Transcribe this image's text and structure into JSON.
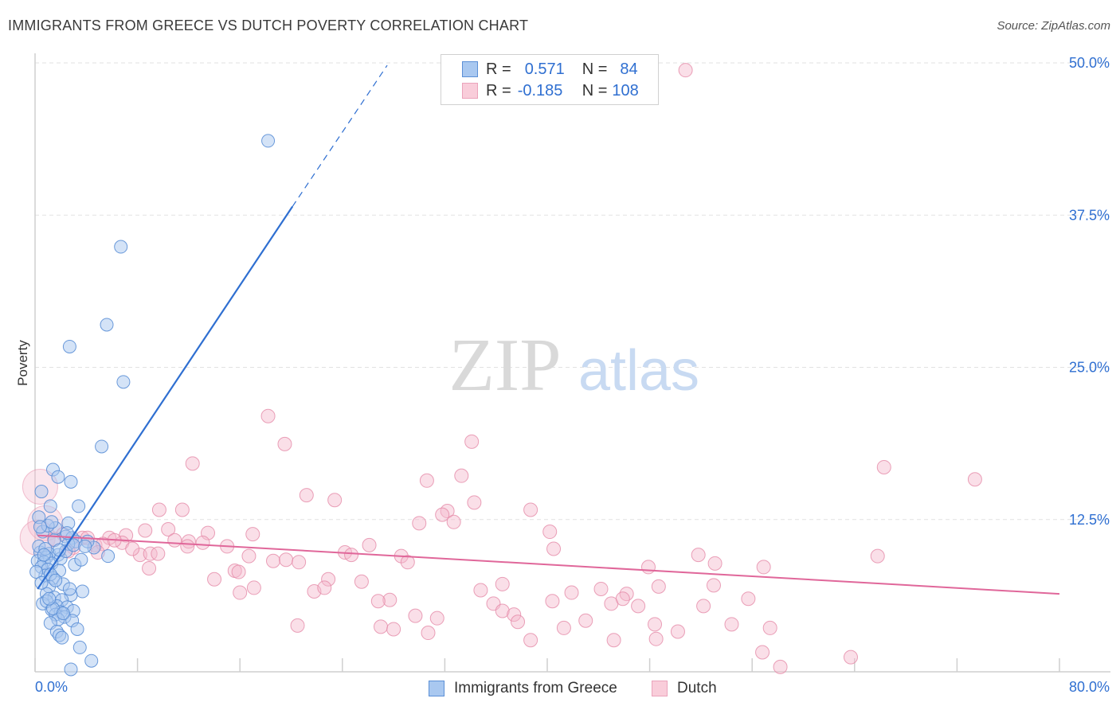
{
  "title": "IMMIGRANTS FROM GREECE VS DUTCH POVERTY CORRELATION CHART",
  "source": "Source: ZipAtlas.com",
  "watermark": {
    "zip": "ZIP",
    "atlas": "atlas"
  },
  "legend": {
    "rows": [
      {
        "r_label": "R =",
        "r_value": "0.571",
        "n_label": "N =",
        "n_value": "84"
      },
      {
        "r_label": "R =",
        "r_value": "-0.185",
        "n_label": "N =",
        "n_value": "108"
      }
    ]
  },
  "bottom_legend": {
    "series1": "Immigrants from Greece",
    "series2": "Dutch"
  },
  "colors": {
    "blue_fill": "#a9c8f0",
    "blue_stroke": "#5b8fd6",
    "blue_line": "#2f6fd1",
    "pink_fill": "#f4b8cb",
    "pink_stroke": "#e58aa8",
    "pink_line": "#e0679a",
    "axis_label": "#2f6fd1",
    "grid": "#e2e2e2"
  },
  "chart_data": {
    "type": "scatter",
    "title": "IMMIGRANTS FROM GREECE VS DUTCH POVERTY CORRELATION CHART",
    "xlabel": "",
    "ylabel": "Poverty",
    "xlim": [
      0,
      80
    ],
    "ylim": [
      0,
      50
    ],
    "x_tick_labels": [
      "0.0%",
      "80.0%"
    ],
    "y_tick_labels": [
      "12.5%",
      "25.0%",
      "37.5%",
      "50.0%"
    ],
    "y_ticks": [
      12.5,
      25.0,
      37.5,
      50.0
    ],
    "x_minor_ticks": [
      0,
      8,
      16,
      24,
      32,
      40,
      48,
      56,
      64,
      72,
      80
    ],
    "series": [
      {
        "name": "Immigrants from Greece",
        "R": 0.571,
        "N": 84,
        "trend": {
          "x1": 0.2,
          "y1": 6.8,
          "x2": 20.1,
          "y2": 38.2,
          "dash_x2": 27.5,
          "dash_y2": 49.8
        },
        "points": [
          [
            18.2,
            43.6
          ],
          [
            6.7,
            34.9
          ],
          [
            5.6,
            28.5
          ],
          [
            2.7,
            26.7
          ],
          [
            6.9,
            23.8
          ],
          [
            5.2,
            18.5
          ],
          [
            1.4,
            16.6
          ],
          [
            1.8,
            16.0
          ],
          [
            2.8,
            15.6
          ],
          [
            0.5,
            14.8
          ],
          [
            3.4,
            13.6
          ],
          [
            1.2,
            13.6
          ],
          [
            0.3,
            12.7
          ],
          [
            1.6,
            11.8
          ],
          [
            0.6,
            11.5
          ],
          [
            2.4,
            11.1
          ],
          [
            2.9,
            11.0
          ],
          [
            3.2,
            10.7
          ],
          [
            2.6,
            10.5
          ],
          [
            4.6,
            10.2
          ],
          [
            0.4,
            9.8
          ],
          [
            1.1,
            9.7
          ],
          [
            1.8,
            9.6
          ],
          [
            0.9,
            9.4
          ],
          [
            2.0,
            9.3
          ],
          [
            5.7,
            9.5
          ],
          [
            0.2,
            9.1
          ],
          [
            0.7,
            9.0
          ],
          [
            1.3,
            8.9
          ],
          [
            3.1,
            8.8
          ],
          [
            0.5,
            8.6
          ],
          [
            1.0,
            8.4
          ],
          [
            1.9,
            8.3
          ],
          [
            0.8,
            7.9
          ],
          [
            1.4,
            7.7
          ],
          [
            2.2,
            7.2
          ],
          [
            1.1,
            7.0
          ],
          [
            3.7,
            6.6
          ],
          [
            0.9,
            6.4
          ],
          [
            2.8,
            6.3
          ],
          [
            1.5,
            6.1
          ],
          [
            2.1,
            5.9
          ],
          [
            0.6,
            5.6
          ],
          [
            1.7,
            5.4
          ],
          [
            2.5,
            5.3
          ],
          [
            1.3,
            5.1
          ],
          [
            3.0,
            5.0
          ],
          [
            2.0,
            4.9
          ],
          [
            1.6,
            4.7
          ],
          [
            2.3,
            4.5
          ],
          [
            1.8,
            4.3
          ],
          [
            2.9,
            4.2
          ],
          [
            1.2,
            4.0
          ],
          [
            3.3,
            3.5
          ],
          [
            1.7,
            3.3
          ],
          [
            1.9,
            3.0
          ],
          [
            2.1,
            2.8
          ],
          [
            3.5,
            2.0
          ],
          [
            4.4,
            0.9
          ],
          [
            2.8,
            0.2
          ],
          [
            0.3,
            10.3
          ],
          [
            0.1,
            8.2
          ],
          [
            1.0,
            12.0
          ],
          [
            1.5,
            10.8
          ],
          [
            2.6,
            12.2
          ],
          [
            0.4,
            11.9
          ],
          [
            1.3,
            12.3
          ],
          [
            0.8,
            10.1
          ],
          [
            2.4,
            9.9
          ],
          [
            3.0,
            10.4
          ],
          [
            1.2,
            8.0
          ],
          [
            1.6,
            7.5
          ],
          [
            2.7,
            6.8
          ],
          [
            0.9,
            5.8
          ],
          [
            1.4,
            5.2
          ],
          [
            2.2,
            4.8
          ],
          [
            0.7,
            9.6
          ],
          [
            1.9,
            10.0
          ],
          [
            3.6,
            9.2
          ],
          [
            0.5,
            7.3
          ],
          [
            1.1,
            6.0
          ],
          [
            2.5,
            11.4
          ],
          [
            4.1,
            10.7
          ],
          [
            3.9,
            10.3
          ]
        ]
      },
      {
        "name": "Dutch",
        "R": -0.185,
        "N": 108,
        "trend": {
          "x1": 0.2,
          "y1": 11.2,
          "x2": 80.0,
          "y2": 6.4
        },
        "points": [
          [
            50.8,
            49.4
          ],
          [
            18.2,
            21.0
          ],
          [
            19.5,
            18.7
          ],
          [
            34.1,
            18.9
          ],
          [
            12.3,
            17.1
          ],
          [
            66.3,
            16.8
          ],
          [
            73.4,
            15.8
          ],
          [
            33.3,
            16.1
          ],
          [
            30.6,
            15.7
          ],
          [
            21.2,
            14.5
          ],
          [
            23.4,
            14.1
          ],
          [
            34.3,
            13.9
          ],
          [
            9.7,
            13.3
          ],
          [
            11.5,
            13.3
          ],
          [
            38.7,
            13.3
          ],
          [
            32.2,
            13.2
          ],
          [
            31.8,
            12.9
          ],
          [
            30.0,
            12.2
          ],
          [
            32.7,
            12.3
          ],
          [
            8.6,
            11.6
          ],
          [
            10.4,
            11.7
          ],
          [
            13.5,
            11.4
          ],
          [
            17.0,
            11.3
          ],
          [
            7.1,
            11.2
          ],
          [
            3.7,
            11.0
          ],
          [
            5.8,
            11.0
          ],
          [
            10.9,
            10.8
          ],
          [
            12.0,
            10.7
          ],
          [
            15.0,
            10.3
          ],
          [
            6.8,
            10.6
          ],
          [
            4.7,
            10.4
          ],
          [
            26.1,
            10.4
          ],
          [
            40.2,
            11.5
          ],
          [
            8.2,
            9.6
          ],
          [
            9.0,
            9.7
          ],
          [
            24.2,
            9.8
          ],
          [
            24.7,
            9.6
          ],
          [
            28.6,
            9.5
          ],
          [
            40.5,
            10.1
          ],
          [
            51.8,
            9.6
          ],
          [
            65.8,
            9.5
          ],
          [
            18.6,
            9.1
          ],
          [
            19.6,
            9.2
          ],
          [
            20.6,
            9.0
          ],
          [
            29.1,
            9.0
          ],
          [
            53.1,
            8.9
          ],
          [
            47.9,
            8.6
          ],
          [
            56.9,
            8.6
          ],
          [
            8.9,
            8.5
          ],
          [
            15.6,
            8.3
          ],
          [
            15.9,
            8.2
          ],
          [
            14.0,
            7.6
          ],
          [
            22.9,
            7.6
          ],
          [
            25.5,
            7.4
          ],
          [
            36.5,
            7.2
          ],
          [
            48.7,
            7.0
          ],
          [
            53.0,
            7.1
          ],
          [
            17.1,
            6.9
          ],
          [
            16.0,
            6.5
          ],
          [
            21.8,
            6.6
          ],
          [
            22.6,
            6.9
          ],
          [
            34.8,
            6.7
          ],
          [
            41.9,
            6.5
          ],
          [
            44.2,
            6.8
          ],
          [
            46.2,
            6.4
          ],
          [
            27.7,
            5.9
          ],
          [
            26.8,
            5.8
          ],
          [
            35.8,
            5.6
          ],
          [
            40.4,
            5.8
          ],
          [
            45.0,
            5.6
          ],
          [
            45.9,
            6.0
          ],
          [
            47.1,
            5.4
          ],
          [
            55.7,
            6.0
          ],
          [
            52.2,
            5.4
          ],
          [
            36.5,
            5.0
          ],
          [
            37.4,
            4.7
          ],
          [
            29.7,
            4.6
          ],
          [
            31.4,
            4.4
          ],
          [
            37.7,
            4.1
          ],
          [
            43.0,
            4.2
          ],
          [
            48.4,
            3.9
          ],
          [
            54.4,
            3.9
          ],
          [
            20.5,
            3.8
          ],
          [
            27.0,
            3.7
          ],
          [
            28.0,
            3.5
          ],
          [
            30.7,
            3.2
          ],
          [
            41.3,
            3.6
          ],
          [
            50.2,
            3.3
          ],
          [
            57.4,
            3.6
          ],
          [
            38.7,
            2.6
          ],
          [
            45.2,
            2.6
          ],
          [
            48.5,
            2.7
          ],
          [
            56.8,
            1.6
          ],
          [
            58.2,
            0.4
          ],
          [
            63.7,
            1.2
          ],
          [
            2.2,
            11.3
          ],
          [
            4.1,
            11.0
          ],
          [
            1.5,
            10.9
          ],
          [
            5.3,
            10.5
          ],
          [
            3.0,
            10.2
          ],
          [
            6.2,
            10.8
          ],
          [
            11.9,
            10.3
          ],
          [
            13.1,
            10.6
          ],
          [
            16.7,
            9.5
          ],
          [
            2.6,
            9.9
          ],
          [
            7.6,
            10.1
          ],
          [
            4.9,
            9.8
          ],
          [
            9.6,
            9.7
          ]
        ],
        "large_points": [
          [
            0.4,
            15.2
          ],
          [
            0.8,
            12.2
          ],
          [
            0.2,
            11.0
          ]
        ]
      }
    ]
  }
}
